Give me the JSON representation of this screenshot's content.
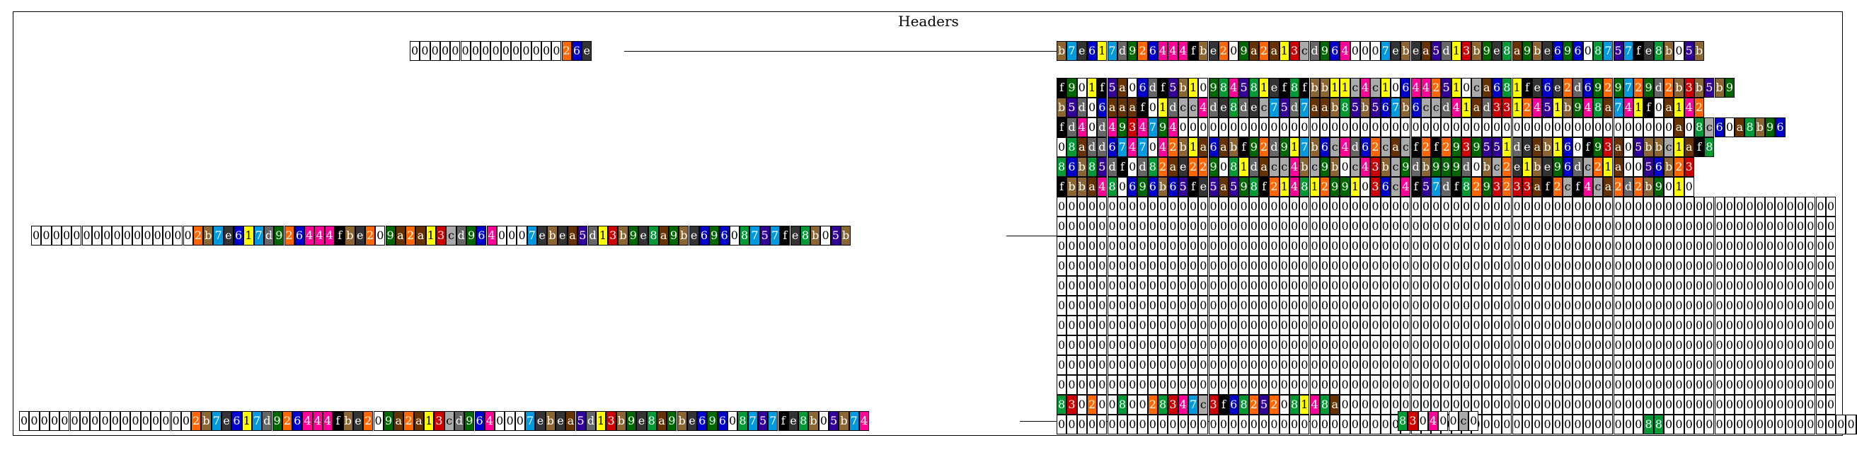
{
  "title": "Headers",
  "palette": {
    "0": "#ffffff",
    "1": "#ffff00",
    "2": "#ff6600",
    "3": "#cc0000",
    "4": "#ff0099",
    "5": "#330099",
    "6": "#0000cc",
    "7": "#0099dd",
    "8": "#009933",
    "9": "#006600",
    "a": "#663300",
    "b": "#8b6633",
    "c": "#aaaaaa",
    "d": "#666666",
    "e": "#333333",
    "f": "#000000"
  },
  "rows": [
    "00000000000000026e",
    "b7e617d926444fbe209a2a13cd9640007ebea5d13b9e8a9be69608757fe8b05b",
    "00000000000000002b7e617d926444fbe209a2a13cd9640007ebea5d13b9e8a9be69608757fe8b05b",
    "f901f5a06df5b10984581ef8fbb11c4c106442510ca681fe6e2d6929729d2b3b5b9",
    "b5d06aaaf01dcc4de8dec75d7aab85b567b6ccd41ad3312451b948a741f0a142",
    "fd40d49347940000000000000000000000000000000000000000000000000a08c60a8b96",
    "08add6747042b1a6abf92d917b6c4d62cacf2f2939551deab160f93a05bbc1af8",
    "86b85df0d82ae229081dacc4bc9b0c43bc9db999d0bc2e1be96dc21a0056b23",
    "fbba480696b65fe5a598f214812991036c4f57df8293233af2cf4ca2d2b9010",
    "00000000000000000000000000000000000000000000000000000000000000000000000000000",
    "00000000000000000000000000000000000000000000000000000000000000000000000000000",
    "00000000000000000000000000000000000000000000000000000000000000000000000000000",
    "00000000000000000000000000000000000000000000000000000000000000000000000000000",
    "00000000000000000000000000000000000000000000000000000000000000000000000000000",
    "00000000000000000000000000000000000000000000000000000000000000000000000000000",
    "00000000000000000000000000000000000000000000000000000000000000000000000000000",
    "00000000000000000000000000000000000000000000000000000000000000000000000000000",
    "00000000000000000000000000000000000000000000000000000000000000000000000000000",
    "00000000000000000000000000000000000000000000000000000000000000000000000000000",
    "83020080028347c3f6825208148a0000000000000000000000000000000000000000000000000",
    "000000000000000000000000000000000000000000000000000000000088000000000000000000000",
    "000000000000000002b7e617d926444fbe209a2a13cd9640007ebea5d13b9e8a9be69608757fe8b05b74",
    "830400c0"
  ]
}
